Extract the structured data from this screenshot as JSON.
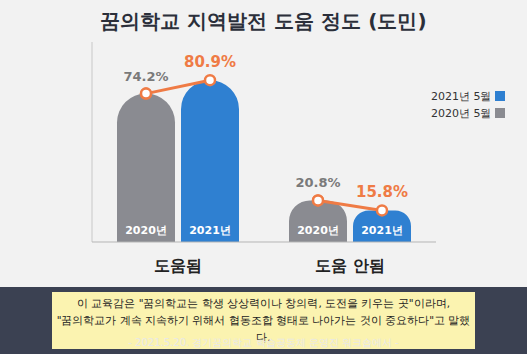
{
  "chart_data": {
    "type": "bar",
    "title": "꿈의학교 지역발전 도움 정도 (도민)",
    "categories": [
      "도움됨",
      "도움 안됨"
    ],
    "series": [
      {
        "name": "2020년 5월",
        "bar_label": "2020년",
        "color": "#8a8b91",
        "values": [
          74.2,
          20.8
        ],
        "value_labels": [
          "74.2%",
          "20.8%"
        ]
      },
      {
        "name": "2021년 5월",
        "bar_label": "2021년",
        "color": "#2f80d1",
        "values": [
          80.9,
          15.8
        ],
        "value_labels": [
          "80.9%",
          "15.8%"
        ]
      }
    ],
    "ylim": [
      0,
      100
    ],
    "tick_labels": "x",
    "grid": false,
    "legend": "upper right",
    "data_labels": true
  },
  "quote": {
    "lines": [
      "이 교육감은 \"꿈의학교는 학생 상상력이나 창의력, 도전을 키우는 곳\"이라며,",
      "\"꿈의학교가 계속 지속하기 위해서 협동조합 형태로 나아가는 것이 중요하다\"고 말했다."
    ],
    "source": "- 2021.5.20. 경기꿈의학교 학습공동체 운영진 워크숍에서 -"
  }
}
